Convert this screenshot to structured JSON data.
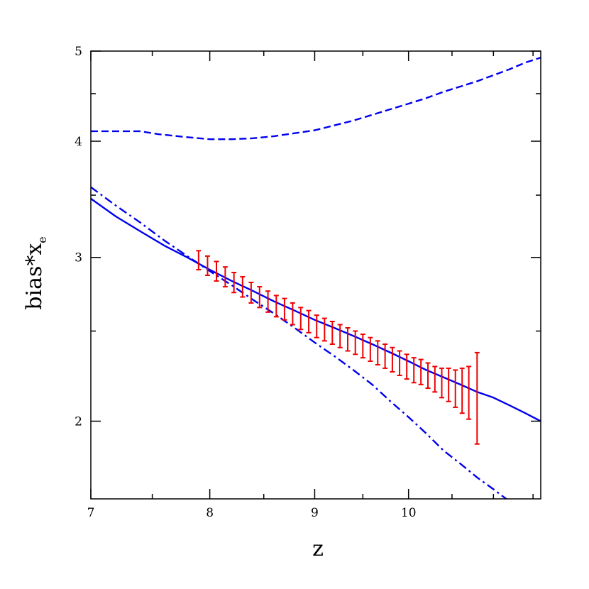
{
  "chart_data": {
    "type": "line",
    "xlabel": "z",
    "ylabel_main": "bias*x",
    "ylabel_sub": "e",
    "x_scale": "log",
    "y_scale": "log",
    "xlim": [
      7,
      11.6
    ],
    "ylim": [
      1.65,
      5.0
    ],
    "x_ticks": [
      7,
      8,
      9,
      10
    ],
    "x_minor_ticks": [
      7.5,
      8.5,
      9.5,
      10.5,
      11,
      11.5
    ],
    "y_ticks": [
      2,
      3,
      4,
      5
    ],
    "y_minor_ticks": [
      2.5,
      3.5,
      4.5
    ],
    "grid": false,
    "legend": "none",
    "colors": {
      "model": "#0000ee",
      "errorbar": "#ee0000"
    },
    "series": [
      {
        "style": "dashed",
        "x": [
          7,
          7.2,
          7.4,
          7.55,
          7.8,
          8.0,
          8.2,
          8.4,
          8.6,
          8.8,
          9.0,
          9.2,
          9.4,
          9.6,
          9.8,
          10.0,
          10.2,
          10.4,
          10.6,
          10.8,
          11.0,
          11.2,
          11.4,
          11.6
        ],
        "y": [
          4.1,
          4.1,
          4.1,
          4.07,
          4.04,
          4.02,
          4.02,
          4.03,
          4.05,
          4.08,
          4.11,
          4.16,
          4.21,
          4.27,
          4.33,
          4.39,
          4.45,
          4.52,
          4.58,
          4.64,
          4.71,
          4.78,
          4.86,
          4.92
        ]
      },
      {
        "style": "solid",
        "x": [
          7,
          7.2,
          7.4,
          7.6,
          7.8,
          8.0,
          8.2,
          8.4,
          8.6,
          8.8,
          9.0,
          9.2,
          9.4,
          9.6,
          9.8,
          10.0,
          10.2,
          10.4,
          10.6,
          10.8,
          11.0,
          11.2,
          11.4,
          11.6
        ],
        "y": [
          3.47,
          3.32,
          3.2,
          3.09,
          3.0,
          2.91,
          2.83,
          2.76,
          2.69,
          2.63,
          2.57,
          2.52,
          2.47,
          2.42,
          2.37,
          2.32,
          2.27,
          2.23,
          2.19,
          2.15,
          2.12,
          2.08,
          2.04,
          2.0
        ]
      },
      {
        "style": "dash-dot",
        "x": [
          7,
          7.2,
          7.4,
          7.6,
          7.8,
          8.0,
          8.2,
          8.4,
          8.6,
          8.8,
          9.0,
          9.2,
          9.4,
          9.6,
          9.8,
          10.0,
          10.2,
          10.4,
          10.6,
          10.8,
          11.0,
          11.2,
          11.4
        ],
        "y": [
          3.57,
          3.41,
          3.27,
          3.13,
          3.01,
          2.9,
          2.8,
          2.7,
          2.61,
          2.52,
          2.43,
          2.35,
          2.27,
          2.19,
          2.1,
          2.02,
          1.94,
          1.86,
          1.8,
          1.74,
          1.69,
          1.64,
          1.59
        ]
      }
    ],
    "errorbars": {
      "x": [
        7.9,
        7.98,
        8.06,
        8.14,
        8.22,
        8.3,
        8.38,
        8.46,
        8.54,
        8.62,
        8.7,
        8.78,
        8.86,
        8.94,
        9.02,
        9.1,
        9.18,
        9.26,
        9.34,
        9.42,
        9.5,
        9.58,
        9.66,
        9.74,
        9.82,
        9.9,
        9.98,
        10.06,
        10.14,
        10.22,
        10.3,
        10.38,
        10.46,
        10.54,
        10.62,
        10.7,
        10.8
      ],
      "y": [
        2.98,
        2.94,
        2.9,
        2.86,
        2.82,
        2.79,
        2.75,
        2.72,
        2.69,
        2.66,
        2.64,
        2.61,
        2.58,
        2.56,
        2.53,
        2.51,
        2.49,
        2.47,
        2.45,
        2.43,
        2.41,
        2.39,
        2.37,
        2.35,
        2.33,
        2.31,
        2.29,
        2.27,
        2.26,
        2.24,
        2.22,
        2.2,
        2.19,
        2.17,
        2.16,
        2.15,
        2.13
      ],
      "err": [
        0.07,
        0.07,
        0.07,
        0.07,
        0.07,
        0.07,
        0.07,
        0.07,
        0.07,
        0.07,
        0.07,
        0.07,
        0.07,
        0.07,
        0.07,
        0.07,
        0.07,
        0.07,
        0.07,
        0.07,
        0.07,
        0.07,
        0.07,
        0.07,
        0.07,
        0.07,
        0.07,
        0.07,
        0.07,
        0.07,
        0.07,
        0.08,
        0.09,
        0.1,
        0.12,
        0.14,
        0.24
      ]
    }
  }
}
